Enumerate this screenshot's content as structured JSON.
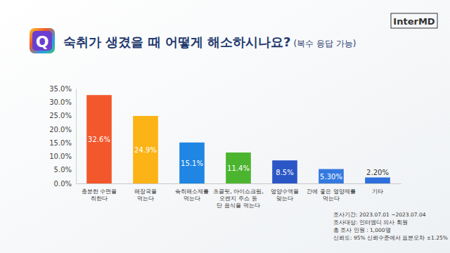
{
  "chart_data": {
    "type": "bar",
    "title": "숙취가 생겼을 때 어떻게 해소하시나요?",
    "subtitle": "(복수 응답 가능)",
    "icon": "Q",
    "logo": "InterMD",
    "categories": [
      "충분한 수면을\n취한다",
      "해장국을\n먹는다",
      "숙취해소제를\n먹는다",
      "초콜릿, 아이스크림,\n오렌지 주스 등\n단 음식을 먹는다",
      "영양수액을\n맞는다",
      "간에 좋은 영양제를\n먹는다",
      "기타"
    ],
    "values": [
      32.6,
      24.9,
      15.1,
      11.4,
      8.5,
      5.3,
      2.2
    ],
    "value_labels": [
      "32.6%",
      "24.9%",
      "15.1%",
      "11.4%",
      "8.5%",
      "5.30%",
      "2.20%"
    ],
    "colors": [
      "#f2582c",
      "#fbb316",
      "#1f86e3",
      "#4cb52f",
      "#2b56c6",
      "#3479e0",
      "#2f6fdc"
    ],
    "ylim": [
      0,
      35
    ],
    "yticks": [
      {
        "value": 0,
        "label": "0.0%"
      },
      {
        "value": 5,
        "label": "5.0%"
      },
      {
        "value": 10,
        "label": "10.0%"
      },
      {
        "value": 15,
        "label": "15.0%"
      },
      {
        "value": 20,
        "label": "20.0%"
      },
      {
        "value": 25,
        "label": "25.0%"
      },
      {
        "value": 30,
        "label": "30.0%"
      },
      {
        "value": 35,
        "label": "35.0%"
      }
    ],
    "grid": false,
    "data_labels": true,
    "annotations": [
      "조사기간: 2023.07.01 ~2023.07.04",
      "조사대상: 인터엠디 의사 회원",
      "총 조사 인원 : 1,000명",
      "신뢰도: 95% 신뢰수준에서 표본오차 ±1.25%"
    ]
  }
}
